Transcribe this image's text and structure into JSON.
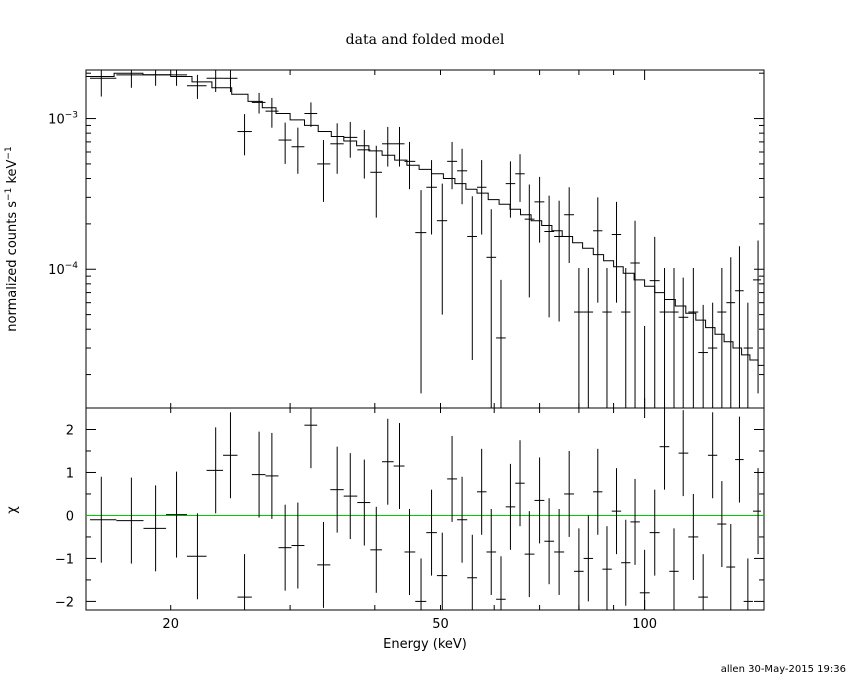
{
  "chart_data": [
    {
      "type": "scatter",
      "title": "data and folded model",
      "xlabel": "Energy (keV)",
      "ylabel": "normalized counts s⁻¹ keV⁻¹",
      "ylabel_main": "normalized counts s",
      "ylabel_sup1": "−1",
      "ylabel_unit": "keV",
      "ylabel_sup2": "−1",
      "x_scale": "log",
      "y_scale": "log",
      "xlim": [
        15,
        150
      ],
      "ylim": [
        1.2e-05,
        0.0021
      ],
      "ytick_labels": [
        {
          "value": 0.001,
          "base": "10",
          "exp": "−3"
        },
        {
          "value": 0.0001,
          "base": "10",
          "exp": "−4"
        }
      ],
      "data": [
        [
          15.8,
          0.00185,
          0.00045
        ],
        [
          17.5,
          0.00195,
          0.00035
        ],
        [
          19.0,
          0.00195,
          0.0003
        ],
        [
          20.4,
          0.00195,
          0.0003
        ],
        [
          21.9,
          0.00165,
          0.0003
        ],
        [
          23.3,
          0.00185,
          0.00035
        ],
        [
          24.5,
          0.00185,
          0.00035
        ],
        [
          25.7,
          0.00082,
          0.00025
        ],
        [
          27.0,
          0.00128,
          0.0002
        ],
        [
          28.2,
          0.00112,
          0.00025
        ],
        [
          29.5,
          0.00072,
          0.00022
        ],
        [
          30.8,
          0.00065,
          0.00022
        ],
        [
          32.2,
          0.00108,
          0.0002
        ],
        [
          33.6,
          0.0005,
          0.00022
        ],
        [
          35.2,
          0.00068,
          0.00025
        ],
        [
          36.8,
          0.00075,
          0.0002
        ],
        [
          38.6,
          0.00062,
          0.00022
        ],
        [
          40.2,
          0.00044,
          0.00022
        ],
        [
          41.8,
          0.00068,
          0.0002
        ],
        [
          43.5,
          0.00068,
          0.0002
        ],
        [
          45.0,
          0.00052,
          0.00018
        ],
        [
          46.8,
          0.000175,
          0.00016
        ],
        [
          48.5,
          0.00035,
          0.00018
        ],
        [
          50.3,
          0.00021,
          0.00016
        ],
        [
          52.0,
          0.00052,
          0.00018
        ],
        [
          53.8,
          0.00045,
          0.00018
        ],
        [
          55.7,
          0.000165,
          0.00014
        ],
        [
          57.5,
          0.00035,
          0.00018
        ],
        [
          59.4,
          0.00012,
          0.00013
        ],
        [
          61.4,
          3.5e-05,
          5e-05
        ],
        [
          63.4,
          0.00037,
          0.00015
        ],
        [
          65.5,
          0.00043,
          0.00015
        ],
        [
          67.6,
          0.000215,
          0.00015
        ],
        [
          70.0,
          0.00028,
          0.00013
        ],
        [
          72.3,
          0.000178,
          0.00013
        ],
        [
          74.8,
          0.000165,
          0.00012
        ],
        [
          77.4,
          0.00023,
          0.00012
        ],
        [
          80.0,
          5.2e-05,
          5e-05
        ],
        [
          82.6,
          5.2e-05,
          5e-05
        ],
        [
          85.3,
          0.00018,
          0.00012
        ],
        [
          88.0,
          5.2e-05,
          5e-05
        ],
        [
          90.9,
          0.00017,
          0.00011
        ],
        [
          93.8,
          5.2e-05,
          5e-05
        ],
        [
          96.8,
          0.00011,
          0.0001
        ],
        [
          100.0,
          1.2e-05,
          3e-05
        ],
        [
          103.5,
          8.4e-05,
          8e-05
        ],
        [
          107.0,
          5.2e-05,
          5e-05
        ],
        [
          110.5,
          5.2e-05,
          5e-05
        ],
        [
          114.0,
          4.8e-05,
          4e-05
        ],
        [
          118.0,
          5.2e-05,
          5e-05
        ],
        [
          122.0,
          2.8e-05,
          3e-05
        ],
        [
          126.0,
          3e-05,
          3e-05
        ],
        [
          130.0,
          5.2e-05,
          5e-05
        ],
        [
          134.0,
          6e-05,
          6e-05
        ],
        [
          138.0,
          7.2e-05,
          7e-05
        ],
        [
          142.0,
          3e-05,
          3e-05
        ],
        [
          147.0,
          8.5e-05,
          7e-05
        ]
      ],
      "model_steps": [
        [
          15.0,
          0.0019
        ],
        [
          16.5,
          0.002
        ],
        [
          18.2,
          0.00195
        ],
        [
          20.0,
          0.0019
        ],
        [
          21.5,
          0.00175
        ],
        [
          23.0,
          0.0016
        ],
        [
          24.6,
          0.00145
        ],
        [
          26.0,
          0.0013
        ],
        [
          27.3,
          0.00118
        ],
        [
          28.6,
          0.00108
        ],
        [
          30.0,
          0.00098
        ],
        [
          31.5,
          0.0009
        ],
        [
          33.0,
          0.00082
        ],
        [
          34.5,
          0.00076
        ],
        [
          36.0,
          0.00071
        ],
        [
          37.6,
          0.00066
        ],
        [
          39.2,
          0.00061
        ],
        [
          41.0,
          0.00057
        ],
        [
          42.8,
          0.00053
        ],
        [
          44.6,
          0.00049
        ],
        [
          46.5,
          0.00046
        ],
        [
          48.5,
          0.00043
        ],
        [
          50.5,
          0.0004
        ],
        [
          52.5,
          0.00037
        ],
        [
          54.5,
          0.00034
        ],
        [
          56.6,
          0.00032
        ],
        [
          58.8,
          0.00029
        ],
        [
          61.0,
          0.00027
        ],
        [
          63.3,
          0.00025
        ],
        [
          65.6,
          0.00023
        ],
        [
          68.0,
          0.00021
        ],
        [
          70.5,
          0.000195
        ],
        [
          73.0,
          0.00018
        ],
        [
          75.6,
          0.000165
        ],
        [
          78.3,
          0.00015
        ],
        [
          81.0,
          0.000138
        ],
        [
          84.0,
          0.000125
        ],
        [
          87.0,
          0.000114
        ],
        [
          90.0,
          0.000104
        ],
        [
          93.0,
          9.4e-05
        ],
        [
          96.5,
          8.5e-05
        ],
        [
          100.0,
          7.7e-05
        ],
        [
          103.5,
          7e-05
        ],
        [
          107.0,
          6.3e-05
        ],
        [
          111.0,
          5.7e-05
        ],
        [
          115.0,
          5.1e-05
        ],
        [
          119.0,
          4.6e-05
        ],
        [
          123.0,
          4.1e-05
        ],
        [
          127.0,
          3.7e-05
        ],
        [
          131.0,
          3.3e-05
        ],
        [
          135.0,
          3e-05
        ],
        [
          139.0,
          2.7e-05
        ],
        [
          143.0,
          2.5e-05
        ],
        [
          147.0,
          2.3e-05
        ],
        [
          150.0,
          2.2e-05
        ]
      ]
    },
    {
      "type": "scatter",
      "xlabel": "Energy (keV)",
      "ylabel": "χ",
      "x_scale": "log",
      "xlim": [
        15,
        150
      ],
      "ylim": [
        -2.2,
        2.5
      ],
      "yticks": [
        2,
        1,
        0,
        -1,
        -2
      ],
      "ytick_labels": [
        "2",
        "1",
        "0",
        "−1",
        "−2"
      ],
      "xticks": [
        20,
        50,
        100
      ],
      "xtick_labels": [
        "20",
        "50",
        "100"
      ],
      "zero_line_color": "#00cc00",
      "data": [
        [
          15.8,
          -0.1,
          1.0
        ],
        [
          17.5,
          -0.12,
          1.0
        ],
        [
          19.0,
          -0.3,
          1.0
        ],
        [
          20.4,
          0.02,
          1.0
        ],
        [
          21.9,
          -0.95,
          1.0
        ],
        [
          23.3,
          1.05,
          1.0
        ],
        [
          24.5,
          1.4,
          1.0
        ],
        [
          25.7,
          -1.9,
          1.0
        ],
        [
          27.0,
          0.95,
          1.0
        ],
        [
          28.2,
          0.92,
          1.0
        ],
        [
          29.5,
          -0.75,
          1.0
        ],
        [
          30.8,
          -0.7,
          1.0
        ],
        [
          32.2,
          2.1,
          1.0
        ],
        [
          33.6,
          -1.15,
          1.0
        ],
        [
          35.2,
          0.6,
          1.0
        ],
        [
          36.8,
          0.45,
          1.0
        ],
        [
          38.6,
          0.3,
          1.0
        ],
        [
          40.2,
          -0.8,
          1.0
        ],
        [
          41.8,
          1.25,
          1.0
        ],
        [
          43.5,
          1.15,
          1.0
        ],
        [
          45.0,
          -0.85,
          1.0
        ],
        [
          46.8,
          -2.0,
          1.0
        ],
        [
          48.5,
          -0.4,
          1.0
        ],
        [
          50.3,
          -1.4,
          1.0
        ],
        [
          52.0,
          0.85,
          1.0
        ],
        [
          53.8,
          -0.1,
          1.0
        ],
        [
          55.7,
          -1.45,
          1.0
        ],
        [
          57.5,
          0.55,
          1.0
        ],
        [
          59.4,
          -0.85,
          1.0
        ],
        [
          61.4,
          -1.95,
          1.0
        ],
        [
          63.4,
          0.2,
          1.0
        ],
        [
          65.5,
          0.75,
          1.0
        ],
        [
          67.6,
          -0.9,
          1.0
        ],
        [
          70.0,
          0.35,
          1.0
        ],
        [
          72.3,
          -0.6,
          1.0
        ],
        [
          74.8,
          -0.85,
          1.0
        ],
        [
          77.4,
          0.5,
          1.0
        ],
        [
          80.0,
          -1.3,
          1.0
        ],
        [
          82.6,
          -1.0,
          1.0
        ],
        [
          85.3,
          0.55,
          1.0
        ],
        [
          88.0,
          -1.25,
          1.0
        ],
        [
          90.9,
          0.1,
          1.0
        ],
        [
          93.8,
          -1.1,
          1.0
        ],
        [
          96.8,
          -0.15,
          1.0
        ],
        [
          100.0,
          -1.8,
          1.0
        ],
        [
          103.5,
          -0.4,
          1.0
        ],
        [
          107.0,
          1.6,
          1.0
        ],
        [
          110.5,
          -1.3,
          1.0
        ],
        [
          114.0,
          1.45,
          1.0
        ],
        [
          118.0,
          -0.5,
          1.0
        ],
        [
          122.0,
          -1.9,
          1.0
        ],
        [
          126.0,
          1.4,
          1.0
        ],
        [
          130.0,
          -0.2,
          1.0
        ],
        [
          134.0,
          -1.2,
          1.0
        ],
        [
          138.0,
          1.3,
          1.0
        ],
        [
          142.0,
          -2.0,
          1.0
        ],
        [
          147.0,
          0.1,
          1.0
        ]
      ]
    }
  ],
  "footer": "allen 30-May-2015 19:36"
}
